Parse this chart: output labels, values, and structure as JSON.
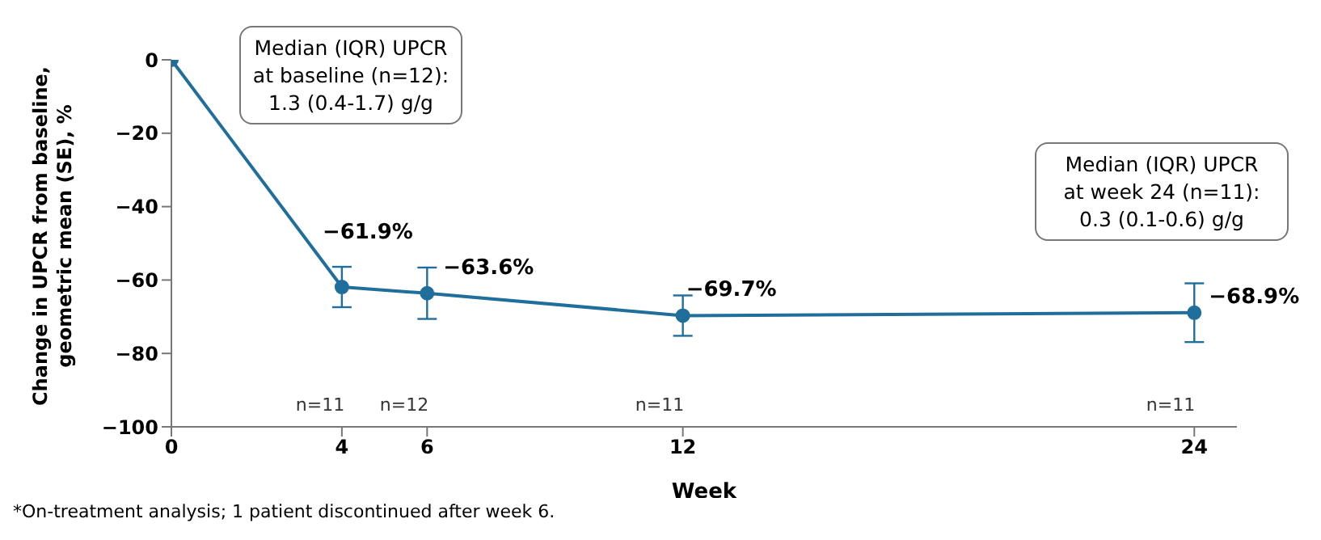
{
  "chart_data": {
    "type": "line",
    "xlabel": "Week",
    "ylabel": "Change in UPCR from baseline, geometric mean (SE), %",
    "x": [
      0,
      4,
      6,
      12,
      24
    ],
    "series": [
      {
        "color": "#1f6e9c",
        "values": [
          0,
          -61.9,
          -63.6,
          -69.7,
          -68.9
        ],
        "errors": [
          null,
          5.5,
          7,
          5.5,
          8
        ],
        "value_labels": [
          null,
          "−61.9%",
          "−63.6%",
          "−69.7%",
          "−68.9%"
        ]
      }
    ],
    "xlim": [
      0,
      25
    ],
    "xticks": [
      0,
      4,
      6,
      12,
      24
    ],
    "ylim": [
      -100,
      0
    ],
    "yticks": [
      0,
      -20,
      -40,
      -60,
      -80,
      -100
    ],
    "marker": "circle",
    "line_style": "solid",
    "grid": false,
    "annotations": [
      "Median (IQR) UPCR\nat baseline (n=12):\n1.3 (0.4-1.7) g/g",
      "Median (IQR) UPCR\nat week 24 (n=11):\n0.3 (0.1-0.6) g/g",
      "*On-treatment analysis; 1 patient discontinued after week 6.",
      "n=11",
      "n=12",
      "n=11",
      "n=11"
    ]
  }
}
